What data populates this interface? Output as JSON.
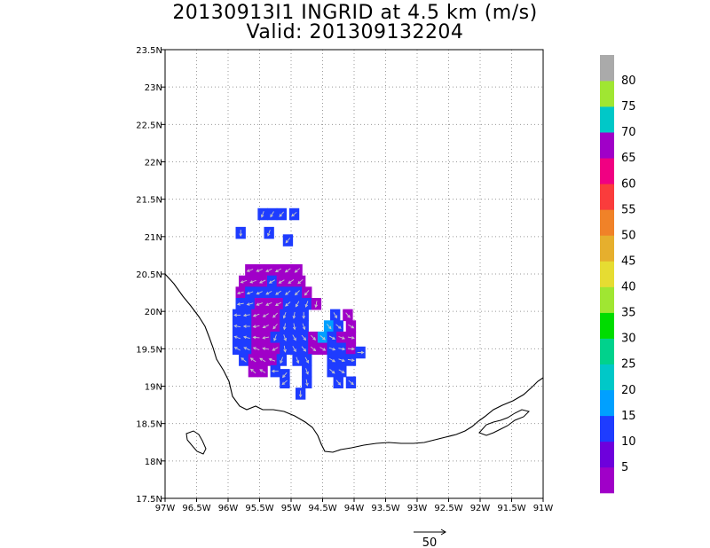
{
  "chart_data": {
    "type": "heatmap",
    "title": "20130913I1 INGRID at 4.5 km (m/s)",
    "subtitle": "Valid: 201309132204",
    "xlim": [
      -97,
      -91
    ],
    "ylim": [
      17.5,
      23.5
    ],
    "grid": true,
    "x_tick_labels": [
      "97W",
      "96.5W",
      "96W",
      "95.5W",
      "95W",
      "94.5W",
      "94W",
      "93.5W",
      "93W",
      "92.5W",
      "92W",
      "91.5W",
      "91W"
    ],
    "y_tick_labels": [
      "17.5N",
      "18N",
      "18.5N",
      "19N",
      "19.5N",
      "20N",
      "20.5N",
      "21N",
      "21.5N",
      "22N",
      "22.5N",
      "23N",
      "23.5N"
    ],
    "colorbar": {
      "levels": [
        0,
        5,
        10,
        15,
        20,
        25,
        30,
        35,
        40,
        45,
        50,
        55,
        60,
        65,
        70,
        75,
        80,
        85
      ],
      "labels": [
        "5",
        "10",
        "15",
        "20",
        "25",
        "30",
        "35",
        "40",
        "45",
        "50",
        "55",
        "60",
        "65",
        "70",
        "75",
        "80"
      ],
      "colors": [
        "#a000c8",
        "#6e00dc",
        "#1e3cff",
        "#00a0ff",
        "#00c8c8",
        "#00d28c",
        "#00dc00",
        "#a0e632",
        "#e6dc32",
        "#e6af2d",
        "#f08228",
        "#fa3c3c",
        "#f00082",
        "#a000c8",
        "#00c8c8",
        "#a0e632",
        "#aaaaaa"
      ]
    },
    "reference_vector": {
      "label": "50"
    },
    "wind_field": [
      {
        "lon": -95.45,
        "lat": 21.3,
        "speed": 12,
        "dir": 200
      },
      {
        "lon": -95.3,
        "lat": 21.3,
        "speed": 12,
        "dir": 210
      },
      {
        "lon": -95.15,
        "lat": 21.3,
        "speed": 11,
        "dir": 220
      },
      {
        "lon": -94.95,
        "lat": 21.3,
        "speed": 12,
        "dir": 230
      },
      {
        "lon": -95.8,
        "lat": 21.05,
        "speed": 11,
        "dir": 180
      },
      {
        "lon": -95.35,
        "lat": 21.05,
        "speed": 12,
        "dir": 200
      },
      {
        "lon": -95.05,
        "lat": 20.95,
        "speed": 13,
        "dir": 220
      },
      {
        "lon": -95.65,
        "lat": 20.55,
        "speed": 4,
        "dir": 250
      },
      {
        "lon": -95.5,
        "lat": 20.55,
        "speed": 4,
        "dir": 250
      },
      {
        "lon": -95.35,
        "lat": 20.55,
        "speed": 4,
        "dir": 245
      },
      {
        "lon": -95.2,
        "lat": 20.55,
        "speed": 4,
        "dir": 240
      },
      {
        "lon": -95.05,
        "lat": 20.55,
        "speed": 3,
        "dir": 235
      },
      {
        "lon": -94.9,
        "lat": 20.55,
        "speed": 4,
        "dir": 230
      },
      {
        "lon": -95.75,
        "lat": 20.4,
        "speed": 4,
        "dir": 250
      },
      {
        "lon": -95.6,
        "lat": 20.4,
        "speed": 3,
        "dir": 250
      },
      {
        "lon": -95.45,
        "lat": 20.4,
        "speed": 4,
        "dir": 245
      },
      {
        "lon": -95.3,
        "lat": 20.4,
        "speed": 13,
        "dir": 240
      },
      {
        "lon": -95.15,
        "lat": 20.4,
        "speed": 4,
        "dir": 240
      },
      {
        "lon": -95.0,
        "lat": 20.4,
        "speed": 4,
        "dir": 235
      },
      {
        "lon": -94.85,
        "lat": 20.4,
        "speed": 4,
        "dir": 230
      },
      {
        "lon": -95.8,
        "lat": 20.25,
        "speed": 4,
        "dir": 255
      },
      {
        "lon": -95.65,
        "lat": 20.25,
        "speed": 12,
        "dir": 250
      },
      {
        "lon": -95.5,
        "lat": 20.25,
        "speed": 13,
        "dir": 245
      },
      {
        "lon": -95.35,
        "lat": 20.25,
        "speed": 12,
        "dir": 240
      },
      {
        "lon": -95.2,
        "lat": 20.25,
        "speed": 13,
        "dir": 235
      },
      {
        "lon": -95.05,
        "lat": 20.25,
        "speed": 12,
        "dir": 230
      },
      {
        "lon": -94.9,
        "lat": 20.25,
        "speed": 13,
        "dir": 225
      },
      {
        "lon": -94.75,
        "lat": 20.25,
        "speed": 4,
        "dir": 220
      },
      {
        "lon": -95.8,
        "lat": 20.1,
        "speed": 12,
        "dir": 260
      },
      {
        "lon": -95.65,
        "lat": 20.1,
        "speed": 12,
        "dir": 255
      },
      {
        "lon": -95.5,
        "lat": 20.1,
        "speed": 4,
        "dir": 250
      },
      {
        "lon": -95.35,
        "lat": 20.1,
        "speed": 4,
        "dir": 245
      },
      {
        "lon": -95.2,
        "lat": 20.1,
        "speed": 4,
        "dir": 240
      },
      {
        "lon": -95.05,
        "lat": 20.1,
        "speed": 12,
        "dir": 230
      },
      {
        "lon": -94.9,
        "lat": 20.1,
        "speed": 13,
        "dir": 210
      },
      {
        "lon": -94.75,
        "lat": 20.1,
        "speed": 12,
        "dir": 200
      },
      {
        "lon": -94.6,
        "lat": 20.1,
        "speed": 4,
        "dir": 190
      },
      {
        "lon": -95.85,
        "lat": 19.95,
        "speed": 12,
        "dir": 270
      },
      {
        "lon": -95.7,
        "lat": 19.95,
        "speed": 12,
        "dir": 260
      },
      {
        "lon": -95.55,
        "lat": 19.95,
        "speed": 4,
        "dir": 250
      },
      {
        "lon": -95.4,
        "lat": 19.95,
        "speed": 4,
        "dir": 240
      },
      {
        "lon": -95.25,
        "lat": 19.95,
        "speed": 4,
        "dir": 225
      },
      {
        "lon": -95.1,
        "lat": 19.95,
        "speed": 12,
        "dir": 200
      },
      {
        "lon": -94.95,
        "lat": 19.95,
        "speed": 13,
        "dir": 190
      },
      {
        "lon": -94.8,
        "lat": 19.95,
        "speed": 12,
        "dir": 180
      },
      {
        "lon": -94.3,
        "lat": 19.95,
        "speed": 12,
        "dir": 150
      },
      {
        "lon": -94.1,
        "lat": 19.95,
        "speed": 4,
        "dir": 140
      },
      {
        "lon": -95.85,
        "lat": 19.8,
        "speed": 12,
        "dir": 280
      },
      {
        "lon": -95.7,
        "lat": 19.8,
        "speed": 12,
        "dir": 270
      },
      {
        "lon": -95.55,
        "lat": 19.8,
        "speed": 4,
        "dir": 260
      },
      {
        "lon": -95.4,
        "lat": 19.8,
        "speed": 4,
        "dir": 245
      },
      {
        "lon": -95.25,
        "lat": 19.8,
        "speed": 4,
        "dir": 220
      },
      {
        "lon": -95.1,
        "lat": 19.8,
        "speed": 12,
        "dir": 190
      },
      {
        "lon": -94.95,
        "lat": 19.8,
        "speed": 12,
        "dir": 170
      },
      {
        "lon": -94.8,
        "lat": 19.8,
        "speed": 12,
        "dir": 160
      },
      {
        "lon": -94.4,
        "lat": 19.8,
        "speed": 16,
        "dir": 140
      },
      {
        "lon": -94.25,
        "lat": 19.8,
        "speed": 12,
        "dir": 130
      },
      {
        "lon": -94.05,
        "lat": 19.8,
        "speed": 4,
        "dir": 120
      },
      {
        "lon": -95.85,
        "lat": 19.65,
        "speed": 12,
        "dir": 290
      },
      {
        "lon": -95.7,
        "lat": 19.65,
        "speed": 12,
        "dir": 285
      },
      {
        "lon": -95.55,
        "lat": 19.65,
        "speed": 4,
        "dir": 275
      },
      {
        "lon": -95.4,
        "lat": 19.65,
        "speed": 4,
        "dir": 260
      },
      {
        "lon": -95.25,
        "lat": 19.65,
        "speed": 12,
        "dir": 200
      },
      {
        "lon": -95.1,
        "lat": 19.65,
        "speed": 12,
        "dir": 160
      },
      {
        "lon": -94.95,
        "lat": 19.65,
        "speed": 12,
        "dir": 150
      },
      {
        "lon": -94.8,
        "lat": 19.65,
        "speed": 12,
        "dir": 140
      },
      {
        "lon": -94.65,
        "lat": 19.65,
        "speed": 4,
        "dir": 135
      },
      {
        "lon": -94.5,
        "lat": 19.65,
        "speed": 16,
        "dir": 130
      },
      {
        "lon": -94.35,
        "lat": 19.65,
        "speed": 12,
        "dir": 120
      },
      {
        "lon": -94.2,
        "lat": 19.65,
        "speed": 4,
        "dir": 110
      },
      {
        "lon": -94.05,
        "lat": 19.65,
        "speed": 4,
        "dir": 100
      },
      {
        "lon": -95.85,
        "lat": 19.5,
        "speed": 12,
        "dir": 300
      },
      {
        "lon": -95.7,
        "lat": 19.5,
        "speed": 12,
        "dir": 295
      },
      {
        "lon": -95.55,
        "lat": 19.5,
        "speed": 4,
        "dir": 290
      },
      {
        "lon": -95.4,
        "lat": 19.5,
        "speed": 4,
        "dir": 280
      },
      {
        "lon": -95.25,
        "lat": 19.5,
        "speed": 4,
        "dir": 240
      },
      {
        "lon": -95.1,
        "lat": 19.5,
        "speed": 12,
        "dir": 170
      },
      {
        "lon": -94.95,
        "lat": 19.5,
        "speed": 12,
        "dir": 150
      },
      {
        "lon": -94.8,
        "lat": 19.5,
        "speed": 12,
        "dir": 140
      },
      {
        "lon": -94.65,
        "lat": 19.5,
        "speed": 4,
        "dir": 130
      },
      {
        "lon": -94.5,
        "lat": 19.5,
        "speed": 4,
        "dir": 120
      },
      {
        "lon": -94.35,
        "lat": 19.5,
        "speed": 12,
        "dir": 110
      },
      {
        "lon": -94.2,
        "lat": 19.5,
        "speed": 12,
        "dir": 100
      },
      {
        "lon": -94.05,
        "lat": 19.5,
        "speed": 4,
        "dir": 95
      },
      {
        "lon": -93.9,
        "lat": 19.45,
        "speed": 12,
        "dir": 90
      },
      {
        "lon": -95.75,
        "lat": 19.35,
        "speed": 12,
        "dir": 310
      },
      {
        "lon": -95.6,
        "lat": 19.35,
        "speed": 4,
        "dir": 305
      },
      {
        "lon": -95.45,
        "lat": 19.35,
        "speed": 4,
        "dir": 300
      },
      {
        "lon": -95.3,
        "lat": 19.35,
        "speed": 4,
        "dir": 290
      },
      {
        "lon": -95.15,
        "lat": 19.35,
        "speed": 12,
        "dir": 200
      },
      {
        "lon": -94.9,
        "lat": 19.35,
        "speed": 12,
        "dir": 160
      },
      {
        "lon": -94.75,
        "lat": 19.35,
        "speed": 12,
        "dir": 150
      },
      {
        "lon": -94.35,
        "lat": 19.35,
        "speed": 12,
        "dir": 120
      },
      {
        "lon": -94.2,
        "lat": 19.35,
        "speed": 12,
        "dir": 110
      },
      {
        "lon": -94.05,
        "lat": 19.35,
        "speed": 12,
        "dir": 100
      },
      {
        "lon": -95.6,
        "lat": 19.2,
        "speed": 4,
        "dir": 310
      },
      {
        "lon": -95.45,
        "lat": 19.2,
        "speed": 4,
        "dir": 300
      },
      {
        "lon": -95.25,
        "lat": 19.2,
        "speed": 12,
        "dir": 270
      },
      {
        "lon": -95.1,
        "lat": 19.15,
        "speed": 12,
        "dir": 220
      },
      {
        "lon": -94.75,
        "lat": 19.2,
        "speed": 12,
        "dir": 160
      },
      {
        "lon": -94.35,
        "lat": 19.2,
        "speed": 12,
        "dir": 130
      },
      {
        "lon": -94.2,
        "lat": 19.2,
        "speed": 12,
        "dir": 120
      },
      {
        "lon": -95.1,
        "lat": 19.05,
        "speed": 12,
        "dir": 230
      },
      {
        "lon": -94.75,
        "lat": 19.05,
        "speed": 12,
        "dir": 170
      },
      {
        "lon": -94.25,
        "lat": 19.05,
        "speed": 12,
        "dir": 140
      },
      {
        "lon": -94.05,
        "lat": 19.05,
        "speed": 12,
        "dir": 130
      },
      {
        "lon": -94.85,
        "lat": 18.9,
        "speed": 12,
        "dir": 180
      }
    ]
  }
}
